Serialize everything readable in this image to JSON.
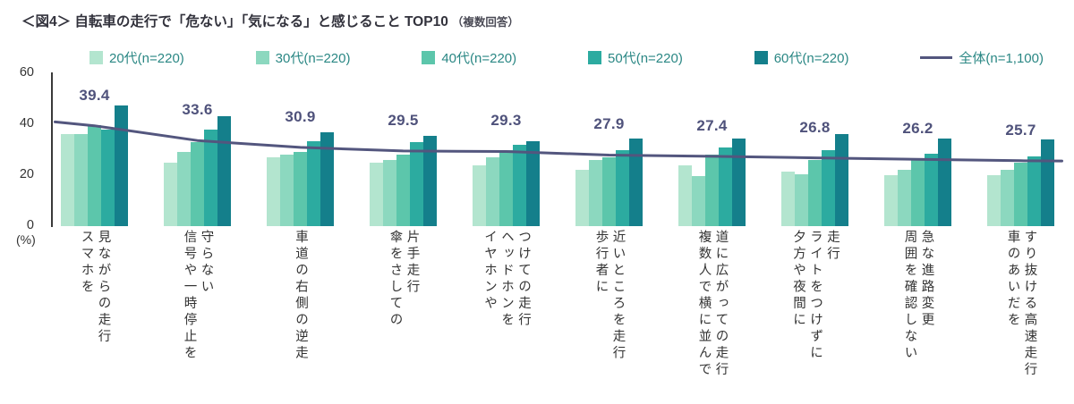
{
  "header": {
    "title": "＜図4＞ 自転車の走行で「危ない」「気になる」と感じること TOP10",
    "note": "（複数回答）"
  },
  "colors": {
    "accent_line": "#53567e",
    "value_label": "#4f527b",
    "legend_text": "#2a8784",
    "axis_text": "#333333"
  },
  "chart_data": {
    "type": "bar",
    "title": "自転車の走行で「危ない」「気になる」と感じること TOP10（複数回答）",
    "xlabel": "",
    "ylabel": "(%)",
    "ylim": [
      0,
      60
    ],
    "yticks": [
      0,
      20,
      40,
      60
    ],
    "grid": false,
    "legend_position": "top",
    "categories": [
      "スマホを\n見ながらの走行",
      "信号や一時停止を\n守らない",
      "車道の右側の逆走",
      "傘をさしての\n片手走行",
      "イヤホンや\nヘッドホンを\nつけての走行",
      "歩行者に\n近いところを走行",
      "複数人で横に並んで\n道に広がっての走行",
      "夕方や夜間に\nライトをつけずに\n走行",
      "周囲を確認しない\n急な進路変更",
      "車のあいだを\nすり抜ける高速走行"
    ],
    "series": [
      {
        "name": "20代(n=220)",
        "color": "#b3e5cf",
        "values": [
          36,
          25,
          27,
          25,
          24,
          22,
          24,
          21.5,
          20,
          20
        ]
      },
      {
        "name": "30代(n=220)",
        "color": "#8cd8bf",
        "values": [
          36,
          29,
          28,
          26,
          27,
          26,
          19.5,
          20.5,
          22,
          22
        ]
      },
      {
        "name": "40代(n=220)",
        "color": "#5cc6ab",
        "values": [
          39.5,
          33,
          29,
          28,
          30,
          27,
          28,
          26,
          26,
          25
        ]
      },
      {
        "name": "50代(n=220)",
        "color": "#2caba0",
        "values": [
          38,
          38,
          33.5,
          33,
          32,
          30,
          31,
          30,
          28.5,
          27.5
        ]
      },
      {
        "name": "60代(n=220)",
        "color": "#147f8b",
        "values": [
          47.5,
          43,
          37,
          35.5,
          33.5,
          34.5,
          34.5,
          36,
          34.5,
          34
        ]
      }
    ],
    "line_series": {
      "name": "全体(n=1,100)",
      "color": "#53567e",
      "values": [
        39.4,
        33.6,
        30.9,
        29.5,
        29.3,
        27.9,
        27.4,
        26.8,
        26.2,
        25.7
      ]
    }
  }
}
